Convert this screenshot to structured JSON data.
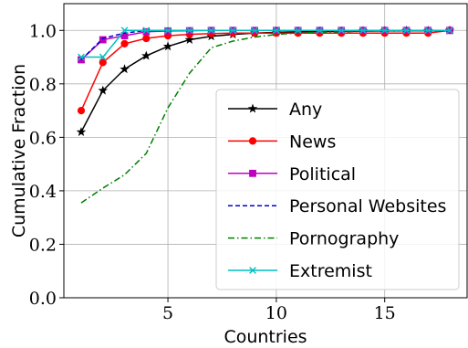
{
  "chart_data": {
    "type": "line",
    "xlabel": "Countries",
    "ylabel": "Cumulative Fraction",
    "xlim": [
      0.2,
      18.8
    ],
    "ylim": [
      0.0,
      1.1
    ],
    "xticks": [
      5,
      10,
      15
    ],
    "yticks": [
      0.0,
      0.2,
      0.4,
      0.6,
      0.8,
      1.0
    ],
    "xtick_labels": [
      "5",
      "10",
      "15"
    ],
    "ytick_labels": [
      "0.0",
      "0.2",
      "0.4",
      "0.6",
      "0.8",
      "1.0"
    ],
    "grid": true,
    "legend_position": "lower-right",
    "x": [
      1,
      2,
      3,
      4,
      5,
      6,
      7,
      8,
      9,
      10,
      11,
      12,
      13,
      14,
      15,
      16,
      17,
      18
    ],
    "series": [
      {
        "name": "Any",
        "color": "#000000",
        "linestyle": "solid",
        "marker": "star",
        "values": [
          0.62,
          0.775,
          0.855,
          0.905,
          0.94,
          0.965,
          0.978,
          0.985,
          0.99,
          0.993,
          0.995,
          0.996,
          0.997,
          0.998,
          0.998,
          0.999,
          0.999,
          1.0
        ]
      },
      {
        "name": "News",
        "color": "#ff0000",
        "linestyle": "solid",
        "marker": "circle",
        "values": [
          0.7,
          0.88,
          0.95,
          0.97,
          0.98,
          0.985,
          0.988,
          0.99,
          0.99,
          0.99,
          0.99,
          0.99,
          0.99,
          0.99,
          0.99,
          0.99,
          0.99,
          1.0
        ]
      },
      {
        "name": "Political",
        "color": "#bf00bf",
        "linestyle": "solid",
        "marker": "square",
        "values": [
          0.89,
          0.965,
          0.98,
          0.995,
          0.998,
          0.999,
          1.0,
          1.0,
          1.0,
          1.0,
          1.0,
          1.0,
          1.0,
          1.0,
          1.0,
          1.0,
          1.0,
          1.0
        ]
      },
      {
        "name": "Personal Websites",
        "color": "#0000cc",
        "linestyle": "dashed",
        "marker": "none",
        "values": [
          0.89,
          0.97,
          0.99,
          1.0,
          1.0,
          1.0,
          1.0,
          1.0,
          1.0,
          1.0,
          1.0,
          1.0,
          1.0,
          1.0,
          1.0,
          1.0,
          1.0,
          1.0
        ]
      },
      {
        "name": "Pornography",
        "color": "#008000",
        "linestyle": "dashdot",
        "marker": "none",
        "values": [
          0.355,
          0.41,
          0.46,
          0.54,
          0.71,
          0.84,
          0.935,
          0.96,
          0.975,
          0.985,
          0.99,
          0.993,
          0.995,
          0.997,
          0.998,
          0.999,
          0.999,
          1.0
        ]
      },
      {
        "name": "Extremist",
        "color": "#00bfbf",
        "linestyle": "solid",
        "marker": "x",
        "values": [
          0.9,
          0.9,
          1.0,
          1.0,
          1.0,
          1.0,
          1.0,
          1.0,
          1.0,
          1.0,
          1.0,
          1.0,
          1.0,
          1.0,
          1.0,
          1.0,
          1.0,
          1.0
        ]
      }
    ]
  }
}
